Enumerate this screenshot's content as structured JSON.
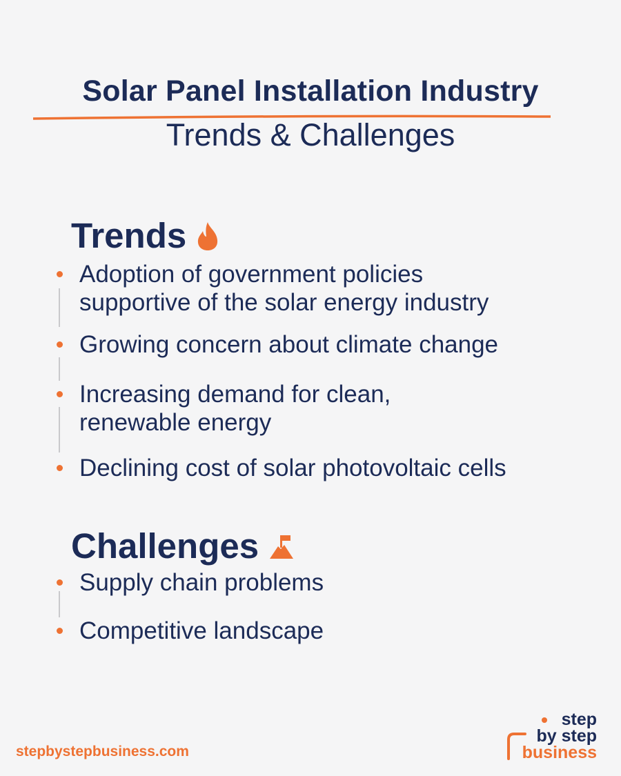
{
  "header": {
    "title": "Solar Panel Installation Industry",
    "subtitle": "Trends & Challenges"
  },
  "trends": {
    "heading": "Trends",
    "icon": "flame-icon",
    "items": [
      {
        "line1": "Adoption of government policies",
        "line2": "supportive of the solar energy industry"
      },
      {
        "line1": "Growing concern about climate change",
        "line2": ""
      },
      {
        "line1": "Increasing demand for clean,",
        "line2": "renewable energy"
      },
      {
        "line1": "Declining cost of solar photovoltaic cells",
        "line2": ""
      }
    ]
  },
  "challenges": {
    "heading": "Challenges",
    "icon": "mountain-flag-icon",
    "items": [
      {
        "line1": "Supply chain problems"
      },
      {
        "line1": "Competitive landscape"
      }
    ]
  },
  "footer": {
    "url": "stepbystepbusiness.com",
    "logo": {
      "line1": "step",
      "line2": "by step",
      "line3": "business"
    }
  },
  "colors": {
    "navy": "#1c2b57",
    "orange": "#ee7233",
    "background": "#f5f5f6",
    "connector": "#c9c9cc"
  }
}
